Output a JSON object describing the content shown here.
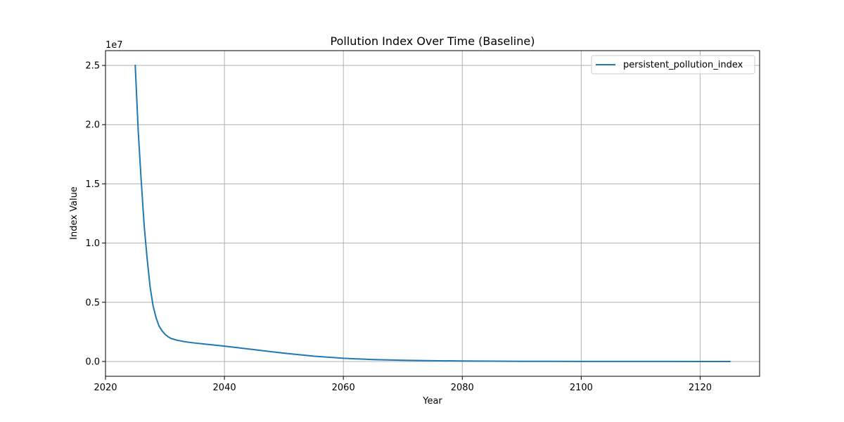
{
  "chart_data": {
    "type": "line",
    "title": "Pollution Index Over Time (Baseline)",
    "xlabel": "Year",
    "ylabel": "Index Value",
    "y_offset_text": "1e7",
    "xlim": [
      2020,
      2130
    ],
    "ylim": [
      -1250000,
      26250000
    ],
    "x_ticks": [
      2020,
      2040,
      2060,
      2080,
      2100,
      2120
    ],
    "x_tick_labels": [
      "2020",
      "2040",
      "2060",
      "2080",
      "2100",
      "2120"
    ],
    "y_ticks": [
      0,
      5000000,
      10000000,
      15000000,
      20000000,
      25000000
    ],
    "y_tick_labels": [
      "0.0",
      "0.5",
      "1.0",
      "1.5",
      "2.0",
      "2.5"
    ],
    "grid": true,
    "legend_position": "top-right",
    "series": [
      {
        "name": "persistent_pollution_index",
        "color": "#1f77b4",
        "x": [
          2025,
          2025.5,
          2026,
          2026.5,
          2027,
          2027.5,
          2028,
          2028.5,
          2029,
          2029.5,
          2030,
          2030.5,
          2031,
          2032,
          2033,
          2034,
          2035,
          2037,
          2040,
          2045,
          2050,
          2055,
          2060,
          2065,
          2070,
          2075,
          2080,
          2085,
          2090,
          2095,
          2100,
          2105,
          2110,
          2115,
          2120,
          2125
        ],
        "y": [
          25000000,
          19500000,
          15300000,
          11500000,
          8700000,
          6300000,
          4700000,
          3700000,
          3000000,
          2600000,
          2300000,
          2100000,
          1950000,
          1800000,
          1700000,
          1620000,
          1560000,
          1450000,
          1300000,
          1000000,
          700000,
          450000,
          270000,
          160000,
          100000,
          65000,
          40000,
          25000,
          15000,
          10000,
          6000,
          4000,
          2500,
          1500,
          1000,
          500
        ]
      }
    ]
  }
}
